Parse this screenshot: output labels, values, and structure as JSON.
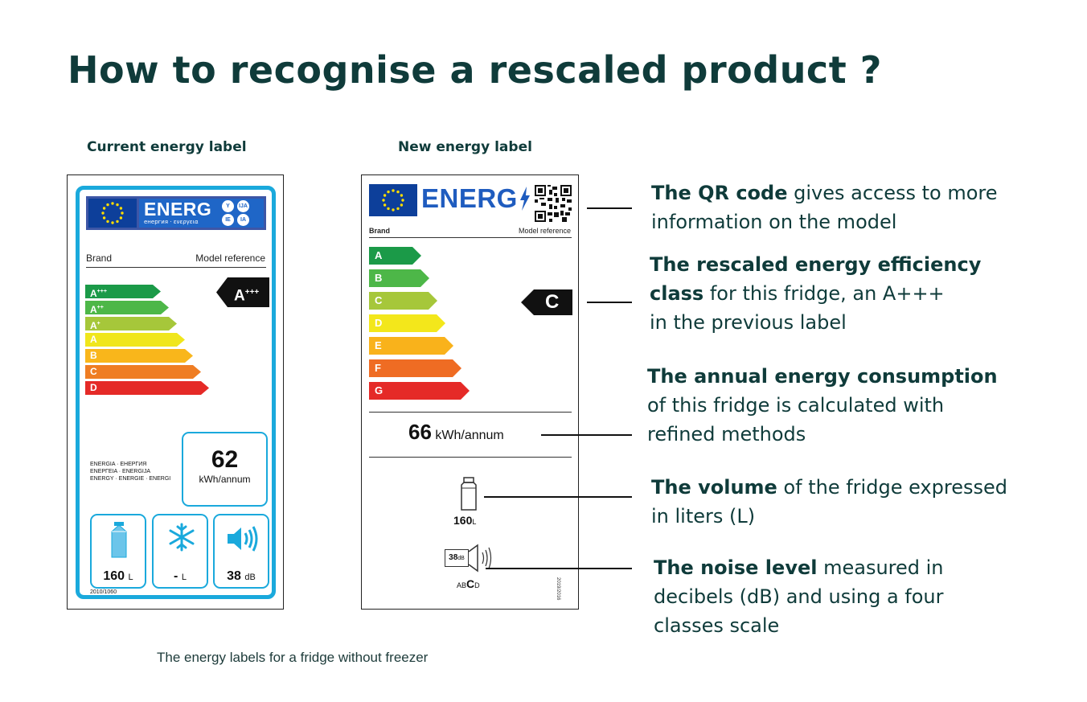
{
  "title": "How to recognise a rescaled product ?",
  "caption": "The energy labels for a fridge without freezer",
  "current_label": {
    "heading": "Current energy label",
    "energ": "ENERG",
    "energ_sub": "енергия · ενεργεια",
    "lang_codes": [
      "Y",
      "IJA",
      "IE",
      "IA"
    ],
    "brand": "Brand",
    "model_reference": "Model reference",
    "classes": [
      {
        "label": "A",
        "sup": "+++",
        "color": "#1b9a48"
      },
      {
        "label": "A",
        "sup": "++",
        "color": "#4db748"
      },
      {
        "label": "A",
        "sup": "+",
        "color": "#a6c73a"
      },
      {
        "label": "A",
        "sup": "",
        "color": "#f0e61c"
      },
      {
        "label": "B",
        "sup": "",
        "color": "#f9b61b"
      },
      {
        "label": "C",
        "sup": "",
        "color": "#ef7d23"
      },
      {
        "label": "D",
        "sup": "",
        "color": "#e52a27"
      }
    ],
    "rated_class": {
      "label": "A",
      "sup": "+++"
    },
    "energy_langs": [
      "ENERGIA · ЕНЕРГИЯ",
      "ΕΝΕΡΓΕΙΑ · ENERGIJA",
      "ENERGY · ENERGIE · ENERGI"
    ],
    "energy_value": "62",
    "energy_unit": "kWh/annum",
    "volume_value": "160",
    "volume_unit": "L",
    "freezer_value": "-",
    "freezer_unit": "L",
    "noise_value": "38",
    "noise_unit": "dB",
    "regulation": "2010/1060",
    "accent_color": "#1aa9dc"
  },
  "new_label": {
    "heading": "New energy label",
    "energ": "ENERG",
    "brand": "Brand",
    "model_reference": "Model reference",
    "classes": [
      {
        "label": "A",
        "color": "#1b9a48"
      },
      {
        "label": "B",
        "color": "#4db748"
      },
      {
        "label": "C",
        "color": "#a6c73a"
      },
      {
        "label": "D",
        "color": "#f3e71b"
      },
      {
        "label": "E",
        "color": "#f9b21b"
      },
      {
        "label": "F",
        "color": "#ef6c23"
      },
      {
        "label": "G",
        "color": "#e52a27"
      }
    ],
    "rated_class": "C",
    "energy_value": "66",
    "energy_unit": "kWh/annum",
    "volume_value": "160",
    "volume_unit": "L",
    "noise_value": "38",
    "noise_unit": "dB",
    "noise_classes": {
      "before": "AB",
      "current": "C",
      "after": "D"
    },
    "regulation": "2019/2016"
  },
  "callouts": [
    {
      "bold": "The QR code",
      "rest_line1": " gives access to more",
      "line2": "information on the model",
      "line3": ""
    },
    {
      "bold": "The rescaled energy efficiency",
      "rest_line1": "",
      "line2_bold": "class",
      "line2": " for this fridge, an A+++",
      "line3": "in the previous label"
    },
    {
      "bold": "The annual energy consumption",
      "rest_line1": "",
      "line2": "of this fridge is calculated with",
      "line3": "refined methods"
    },
    {
      "bold": "The volume",
      "rest_line1": " of the fridge expressed",
      "line2": "in liters (L)",
      "line3": ""
    },
    {
      "bold": "The noise level",
      "rest_line1": " measured in",
      "line2": "decibels (dB) and using a four",
      "line3": "classes scale"
    }
  ]
}
